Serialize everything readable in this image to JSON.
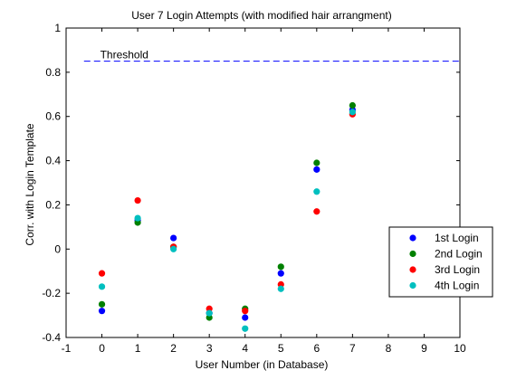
{
  "chart_data": {
    "type": "scatter",
    "title": "User 7 Login Attempts (with modified hair arrangment)",
    "xlabel": "User Number (in Database)",
    "ylabel": "Corr. with Login Template",
    "xlim": [
      -1,
      10
    ],
    "ylim": [
      -0.4,
      1
    ],
    "xticks": [
      "-1",
      "0",
      "1",
      "2",
      "3",
      "4",
      "5",
      "6",
      "7",
      "8",
      "9",
      "10"
    ],
    "yticks": [
      "-0.4",
      "-0.2",
      "0",
      "0.2",
      "0.4",
      "0.6",
      "0.8",
      "1"
    ],
    "grid": false,
    "legend_position": "lower-right",
    "threshold": {
      "label": "Threshold",
      "value": 0.85,
      "color": "#0000ff",
      "style": "dashed"
    },
    "x": [
      0,
      1,
      2,
      3,
      4,
      5,
      6,
      7
    ],
    "series": [
      {
        "name": "1st Login",
        "color": "#0000ff",
        "values": [
          -0.28,
          0.13,
          0.05,
          -0.29,
          -0.31,
          -0.11,
          0.36,
          0.63
        ]
      },
      {
        "name": "2nd Login",
        "color": "#008000",
        "values": [
          -0.25,
          0.12,
          0.01,
          -0.31,
          -0.27,
          -0.08,
          0.39,
          0.65
        ]
      },
      {
        "name": "3rd Login",
        "color": "#ff0000",
        "values": [
          -0.11,
          0.22,
          0.01,
          -0.27,
          -0.28,
          -0.16,
          0.17,
          0.61
        ]
      },
      {
        "name": "4th Login",
        "color": "#00bfbf",
        "values": [
          -0.17,
          0.14,
          0.0,
          -0.29,
          -0.36,
          -0.18,
          0.26,
          0.62
        ]
      }
    ]
  }
}
